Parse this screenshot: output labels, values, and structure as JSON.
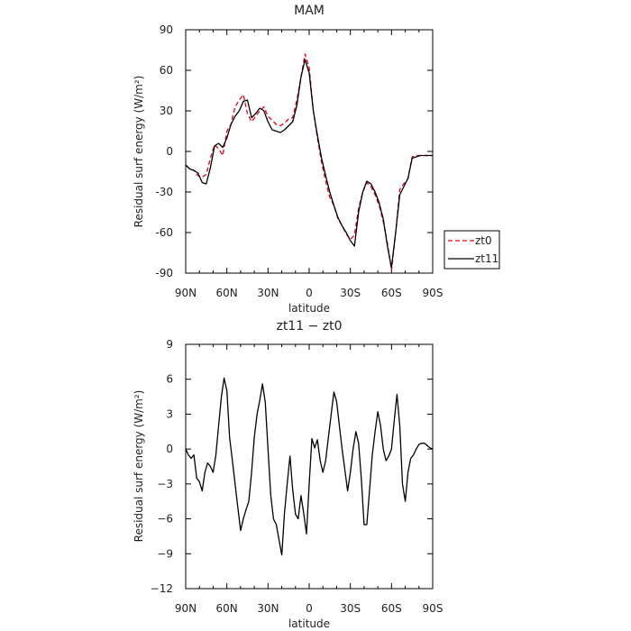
{
  "chart_data": [
    {
      "type": "line",
      "title": "MAM",
      "xlabel": "latitude",
      "ylabel": "Residual surf energy (W/m²)",
      "xlim": [
        90,
        -90
      ],
      "ylim": [
        -90,
        90
      ],
      "xticks": [
        90,
        60,
        30,
        0,
        -30,
        -60,
        -90
      ],
      "xtick_labels": [
        "90N",
        "60N",
        "30N",
        "0",
        "30S",
        "60S",
        "90S"
      ],
      "yticks": [
        -90,
        -60,
        -30,
        0,
        30,
        60,
        90
      ],
      "ytick_labels": [
        "-90",
        "-60",
        "-30",
        "0",
        "30",
        "60",
        "90"
      ],
      "legend": "right-bottom",
      "series": [
        {
          "name": "zt0",
          "color": "#e0001e",
          "dash": "dashed",
          "x": [
            90,
            87,
            84,
            81,
            78,
            75,
            72,
            69,
            66,
            63,
            60,
            57,
            54,
            51,
            48,
            45,
            42,
            39,
            36,
            33,
            30,
            27,
            24,
            21,
            18,
            15,
            12,
            9,
            6,
            3,
            0,
            -3,
            -6,
            -9,
            -12,
            -15,
            -18,
            -21,
            -24,
            -27,
            -30,
            -33,
            -36,
            -39,
            -42,
            -45,
            -48,
            -51,
            -54,
            -57,
            -60,
            -63,
            -66,
            -69,
            -72,
            -75,
            -78,
            -81,
            -84,
            -87,
            -90
          ],
          "y": [
            -10,
            -13,
            -14,
            -18,
            -19,
            -17,
            -5,
            5,
            2,
            -3,
            15,
            20,
            33,
            38,
            42,
            28,
            22,
            26,
            30,
            33,
            26,
            23,
            20,
            19,
            21,
            24,
            25,
            38,
            55,
            72,
            62,
            30,
            10,
            -8,
            -22,
            -34,
            -40,
            -50,
            -55,
            -61,
            -65,
            -62,
            -42,
            -30,
            -23,
            -26,
            -32,
            -40,
            -52,
            -68,
            -88,
            -60,
            -28,
            -24,
            -20,
            -4,
            -3,
            -3,
            -3,
            -3,
            -3
          ]
        },
        {
          "name": "zt11",
          "color": "#000000",
          "dash": "solid",
          "x": [
            90,
            87,
            84,
            81,
            78,
            75,
            72,
            69,
            66,
            63,
            60,
            57,
            54,
            51,
            48,
            45,
            42,
            39,
            36,
            33,
            30,
            27,
            24,
            21,
            18,
            15,
            12,
            9,
            6,
            3,
            0,
            -3,
            -6,
            -9,
            -12,
            -15,
            -18,
            -21,
            -24,
            -27,
            -30,
            -33,
            -36,
            -39,
            -42,
            -45,
            -48,
            -51,
            -54,
            -57,
            -60,
            -63,
            -66,
            -69,
            -72,
            -75,
            -78,
            -81,
            -84,
            -87,
            -90
          ],
          "y": [
            -10,
            -13,
            -14,
            -16,
            -23,
            -24,
            -12,
            4,
            6,
            3,
            10,
            20,
            26,
            30,
            37,
            38,
            25,
            28,
            32,
            30,
            22,
            16,
            15,
            14,
            16,
            19,
            22,
            34,
            55,
            68,
            58,
            30,
            12,
            -5,
            -18,
            -30,
            -40,
            -49,
            -55,
            -60,
            -66,
            -70,
            -45,
            -30,
            -22,
            -24,
            -30,
            -38,
            -50,
            -70,
            -86,
            -60,
            -32,
            -26,
            -20,
            -5,
            -4,
            -3,
            -3,
            -3,
            -3
          ]
        }
      ]
    },
    {
      "type": "line",
      "title": "zt11 − zt0",
      "xlabel": "latitude",
      "ylabel": "Residual surf energy (W/m²)",
      "xlim": [
        90,
        -90
      ],
      "ylim": [
        -12,
        9
      ],
      "xticks": [
        90,
        60,
        30,
        0,
        -30,
        -60,
        -90
      ],
      "xtick_labels": [
        "90N",
        "60N",
        "30N",
        "0",
        "30S",
        "60S",
        "90S"
      ],
      "yticks": [
        -12,
        -9,
        -6,
        -3,
        0,
        3,
        6,
        9
      ],
      "ytick_labels": [
        "−12",
        "−9",
        "−6",
        "−3",
        "0",
        "3",
        "6",
        "9"
      ],
      "series": [
        {
          "name": "zt11 − zt0",
          "color": "#000000",
          "dash": "solid",
          "x": [
            90,
            88,
            86,
            84,
            82,
            80,
            78,
            76,
            74,
            72,
            70,
            68,
            66,
            64,
            62,
            60,
            58,
            56,
            54,
            52,
            50,
            48,
            46,
            44,
            42,
            40,
            38,
            36,
            34,
            32,
            30,
            28,
            26,
            24,
            22,
            20,
            18,
            16,
            14,
            12,
            10,
            8,
            6,
            4,
            2,
            0,
            -2,
            -4,
            -6,
            -8,
            -10,
            -12,
            -14,
            -16,
            -18,
            -20,
            -22,
            -24,
            -26,
            -28,
            -30,
            -32,
            -34,
            -36,
            -38,
            -40,
            -42,
            -44,
            -46,
            -48,
            -50,
            -52,
            -54,
            -56,
            -58,
            -60,
            -62,
            -64,
            -66,
            -68,
            -70,
            -72,
            -74,
            -76,
            -78,
            -80,
            -82,
            -84,
            -86,
            -88,
            -90
          ],
          "y": [
            0,
            -0.5,
            -0.8,
            -0.5,
            -2.5,
            -2.8,
            -3.6,
            -2,
            -1.2,
            -1.5,
            -2,
            -0.5,
            2,
            4.5,
            6.1,
            5,
            1,
            -1,
            -3,
            -5,
            -7,
            -6,
            -5.2,
            -4.5,
            -2,
            1,
            3,
            4.2,
            5.6,
            4,
            0,
            -4,
            -6,
            -6.5,
            -7.8,
            -9.1,
            -5.5,
            -3,
            -0.6,
            -3.5,
            -5.6,
            -6,
            -4,
            -5.5,
            -7.3,
            -3,
            0.9,
            0.1,
            0.8,
            -1,
            -2,
            -1,
            1,
            3,
            4.9,
            4.1,
            2,
            0,
            -1.8,
            -3.6,
            -2,
            0,
            1.5,
            0.5,
            -2.5,
            -6.5,
            -6.5,
            -3.5,
            -0.5,
            1.5,
            3.2,
            2,
            0,
            -1,
            -0.6,
            0,
            2.5,
            4.7,
            2,
            -3,
            -4.5,
            -2,
            -0.8,
            -0.5,
            0,
            0.4,
            0.5,
            0.5,
            0.3,
            0.1,
            0
          ]
        }
      ]
    }
  ]
}
